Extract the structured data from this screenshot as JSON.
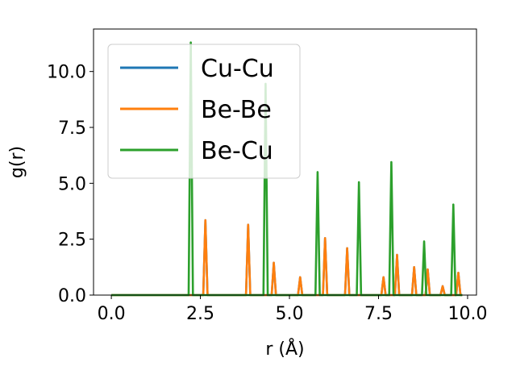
{
  "chart_data": {
    "type": "line",
    "xlabel": "r (Å)",
    "ylabel": "g(r)",
    "xlim": [
      -0.5,
      10.25
    ],
    "ylim": [
      0,
      11.9
    ],
    "xticks": [
      0.0,
      2.5,
      5.0,
      7.5,
      10.0
    ],
    "xtick_labels": [
      "0.0",
      "2.5",
      "5.0",
      "7.5",
      "10.0"
    ],
    "yticks": [
      0.0,
      2.5,
      5.0,
      7.5,
      10.0
    ],
    "ytick_labels": [
      "0.0",
      "2.5",
      "5.0",
      "7.5",
      "10.0"
    ],
    "grid": false,
    "legend_position": "top-left",
    "series": [
      {
        "name": "Cu-Cu",
        "color": "#1f77b4",
        "x": [
          0.0,
          2.58,
          2.64,
          2.7,
          3.78,
          3.84,
          3.9,
          4.5,
          4.56,
          4.62,
          5.24,
          5.3,
          5.36,
          5.94,
          6.0,
          6.06,
          6.56,
          6.62,
          6.68,
          7.58,
          7.64,
          7.7,
          7.96,
          8.02,
          8.08,
          8.44,
          8.5,
          8.56,
          8.82,
          8.88,
          8.94,
          9.24,
          9.3,
          9.36,
          9.68,
          9.74,
          9.8,
          9.85
        ],
        "y": [
          0.0,
          0.0,
          3.35,
          0.0,
          0.0,
          3.15,
          0.0,
          0.0,
          1.45,
          0.0,
          0.0,
          0.8,
          0.0,
          0.0,
          2.55,
          0.0,
          0.0,
          2.1,
          0.0,
          0.0,
          0.8,
          0.0,
          0.0,
          1.8,
          0.0,
          0.0,
          1.25,
          0.0,
          0.0,
          1.15,
          0.0,
          0.0,
          0.4,
          0.0,
          0.0,
          1.0,
          0.0,
          0.0
        ]
      },
      {
        "name": "Be-Be",
        "color": "#ff7f0e",
        "x": [
          0.0,
          2.58,
          2.64,
          2.7,
          3.78,
          3.84,
          3.9,
          4.5,
          4.56,
          4.62,
          5.24,
          5.3,
          5.36,
          5.94,
          6.0,
          6.06,
          6.56,
          6.62,
          6.68,
          7.58,
          7.64,
          7.7,
          7.96,
          8.02,
          8.08,
          8.44,
          8.5,
          8.56,
          8.82,
          8.88,
          8.94,
          9.24,
          9.3,
          9.36,
          9.68,
          9.74,
          9.8,
          9.85
        ],
        "y": [
          0.0,
          0.0,
          3.35,
          0.0,
          0.0,
          3.15,
          0.0,
          0.0,
          1.45,
          0.0,
          0.0,
          0.8,
          0.0,
          0.0,
          2.55,
          0.0,
          0.0,
          2.1,
          0.0,
          0.0,
          0.8,
          0.0,
          0.0,
          1.8,
          0.0,
          0.0,
          1.25,
          0.0,
          0.0,
          1.15,
          0.0,
          0.0,
          0.4,
          0.0,
          0.0,
          1.0,
          0.0,
          0.0
        ]
      },
      {
        "name": "Be-Cu",
        "color": "#2ca02c",
        "x": [
          0.0,
          2.17,
          2.23,
          2.29,
          4.27,
          4.33,
          4.39,
          5.73,
          5.79,
          5.85,
          6.89,
          6.95,
          7.01,
          7.8,
          7.86,
          7.92,
          8.72,
          8.78,
          8.84,
          9.54,
          9.6,
          9.66,
          9.85
        ],
        "y": [
          0.0,
          0.0,
          11.3,
          0.0,
          0.0,
          9.45,
          0.0,
          0.0,
          5.5,
          0.0,
          0.0,
          5.05,
          0.0,
          0.0,
          5.95,
          0.0,
          0.0,
          2.4,
          0.0,
          0.0,
          4.05,
          0.0,
          0.0
        ]
      }
    ]
  }
}
